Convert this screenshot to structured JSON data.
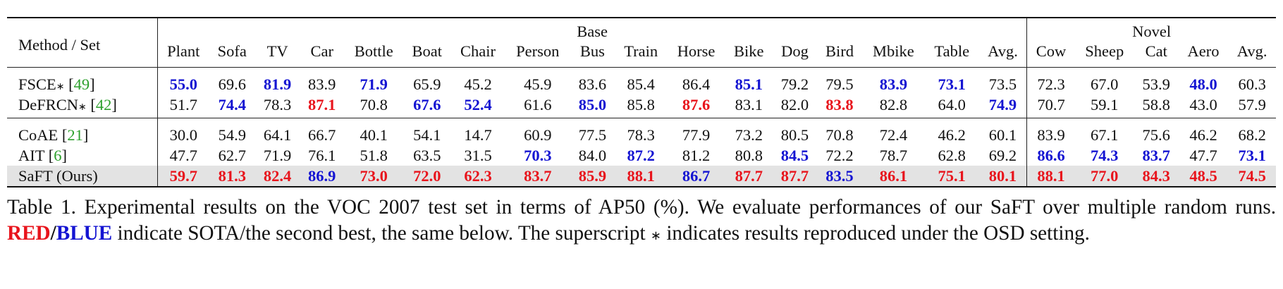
{
  "table": {
    "method_header": "Method / Set",
    "colors": {
      "red": "#e8141c",
      "blue": "#1414d2",
      "shade": "#e3e3e3"
    },
    "groups": [
      {
        "label": "Base",
        "columns": [
          "Plant",
          "Sofa",
          "TV",
          "Car",
          "Bottle",
          "Boat",
          "Chair",
          "Person",
          "Bus",
          "Train",
          "Horse",
          "Bike",
          "Dog",
          "Bird",
          "Mbike",
          "Table",
          "Avg."
        ]
      },
      {
        "label": "Novel",
        "columns": [
          "Cow",
          "Sheep",
          "Cat",
          "Aero",
          "Avg."
        ]
      }
    ],
    "sections": [
      [
        {
          "method": [
            {
              "text": "FSCE"
            },
            {
              "text": "∗",
              "sup": true
            },
            {
              "text": " ["
            },
            {
              "text": "49",
              "color": "#2ca02c"
            },
            {
              "text": "]"
            }
          ],
          "values": [
            "55.0",
            "69.6",
            "81.9",
            "83.9",
            "71.9",
            "65.9",
            "45.2",
            "45.9",
            "83.6",
            "85.4",
            "86.4",
            "85.1",
            "79.2",
            "79.5",
            "83.9",
            "73.1",
            "73.5",
            "72.3",
            "67.0",
            "53.9",
            "48.0",
            "60.3"
          ],
          "red": [],
          "blue": [
            0,
            2,
            4,
            11,
            14,
            15,
            20
          ]
        },
        {
          "method": [
            {
              "text": "DeFRCN"
            },
            {
              "text": "∗",
              "sup": true
            },
            {
              "text": " ["
            },
            {
              "text": "42",
              "color": "#2ca02c"
            },
            {
              "text": "]"
            }
          ],
          "values": [
            "51.7",
            "74.4",
            "78.3",
            "87.1",
            "70.8",
            "67.6",
            "52.4",
            "61.6",
            "85.0",
            "85.8",
            "87.6",
            "83.1",
            "82.0",
            "83.8",
            "82.8",
            "64.0",
            "74.9",
            "70.7",
            "59.1",
            "58.8",
            "43.0",
            "57.9"
          ],
          "red": [
            3,
            10,
            13
          ],
          "blue": [
            1,
            5,
            6,
            8,
            16
          ]
        }
      ],
      [
        {
          "method": [
            {
              "text": "CoAE ["
            },
            {
              "text": "21",
              "color": "#2ca02c"
            },
            {
              "text": "]"
            }
          ],
          "values": [
            "30.0",
            "54.9",
            "64.1",
            "66.7",
            "40.1",
            "54.1",
            "14.7",
            "60.9",
            "77.5",
            "78.3",
            "77.9",
            "73.2",
            "80.5",
            "70.8",
            "72.4",
            "46.2",
            "60.1",
            "83.9",
            "67.1",
            "75.6",
            "46.2",
            "68.2"
          ],
          "red": [],
          "blue": []
        },
        {
          "method": [
            {
              "text": "AIT ["
            },
            {
              "text": "6",
              "color": "#2ca02c"
            },
            {
              "text": "]"
            }
          ],
          "values": [
            "47.7",
            "62.7",
            "71.9",
            "76.1",
            "51.8",
            "63.5",
            "31.5",
            "70.3",
            "84.0",
            "87.2",
            "81.2",
            "80.8",
            "84.5",
            "72.2",
            "78.7",
            "62.8",
            "69.2",
            "86.6",
            "74.3",
            "83.7",
            "47.7",
            "73.1"
          ],
          "red": [],
          "blue": [
            7,
            9,
            12,
            17,
            18,
            19,
            21
          ]
        },
        {
          "method": [
            {
              "text": "SaFT (Ours)"
            }
          ],
          "shaded": true,
          "values": [
            "59.7",
            "81.3",
            "82.4",
            "86.9",
            "73.0",
            "72.0",
            "62.3",
            "83.7",
            "85.9",
            "88.1",
            "86.7",
            "87.7",
            "87.7",
            "83.5",
            "86.1",
            "75.1",
            "80.1",
            "88.1",
            "77.0",
            "84.3",
            "48.5",
            "74.5"
          ],
          "red": [
            0,
            1,
            2,
            4,
            5,
            6,
            7,
            8,
            9,
            11,
            12,
            14,
            15,
            16,
            17,
            18,
            19,
            20,
            21
          ],
          "blue": [
            3,
            10,
            13
          ]
        }
      ]
    ]
  },
  "caption": [
    {
      "text": "Table 1. Experimental results on the VOC 2007 test set in terms of AP50 (%). We evaluate performances of our SaFT over multiple random runs. "
    },
    {
      "text": "RED",
      "bold": true,
      "color": "#e8141c"
    },
    {
      "text": "/",
      "bold": true
    },
    {
      "text": "BLUE",
      "bold": true,
      "color": "#1414d2"
    },
    {
      "text": " indicate SOTA/the second best, the same below. The superscript "
    },
    {
      "text": "∗",
      "sup": true
    },
    {
      "text": " indicates results reproduced under the OSD setting."
    }
  ]
}
